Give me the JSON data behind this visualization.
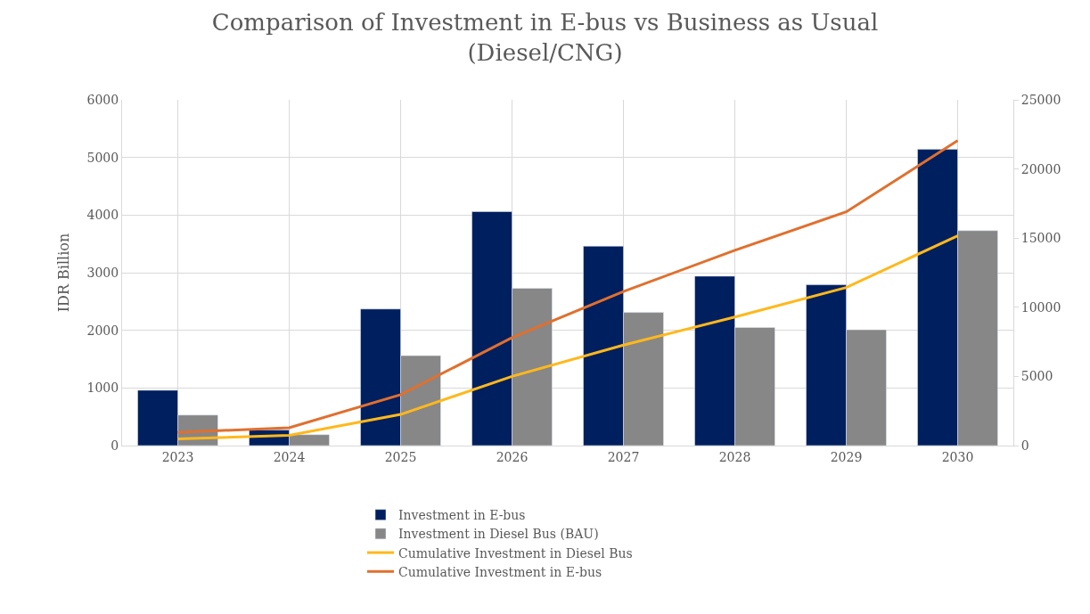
{
  "chart_data": {
    "type": "bar",
    "title": "Comparison of Investment in E-bus vs Business as Usual\n(Diesel/CNG)",
    "ylabel": "IDR Billion",
    "categories": [
      "2023",
      "2024",
      "2025",
      "2026",
      "2027",
      "2028",
      "2029",
      "2030"
    ],
    "series": [
      {
        "name": "Investment in E-bus",
        "color": "#001f5f",
        "values": [
          960,
          270,
          2370,
          4060,
          3460,
          2940,
          2790,
          5140
        ]
      },
      {
        "name": "Investment in Diesel Bus (BAU)",
        "color": "#878787",
        "values": [
          530,
          190,
          1560,
          2730,
          2310,
          2050,
          2010,
          3730
        ]
      },
      {
        "name": "Cumulative Investment in Diesel Bus",
        "type": "line",
        "axis": "y2",
        "color": "#ffb81c",
        "values": [
          480,
          740,
          2250,
          5000,
          7260,
          9290,
          11430,
          15170
        ]
      },
      {
        "name": "Cumulative Investment in E-bus",
        "type": "line",
        "axis": "y2",
        "color": "#e0702e",
        "values": [
          950,
          1290,
          3680,
          7800,
          11140,
          14120,
          16900,
          22050
        ]
      }
    ],
    "ylim": [
      0,
      6000
    ],
    "yticks": [
      0,
      1000,
      2000,
      3000,
      4000,
      5000,
      6000
    ],
    "y2lim": [
      0,
      25000
    ],
    "y2ticks": [
      0,
      5000,
      10000,
      15000,
      20000,
      25000
    ],
    "grid": true,
    "legend": "bottom",
    "marker": "none",
    "line_style": "solid"
  }
}
